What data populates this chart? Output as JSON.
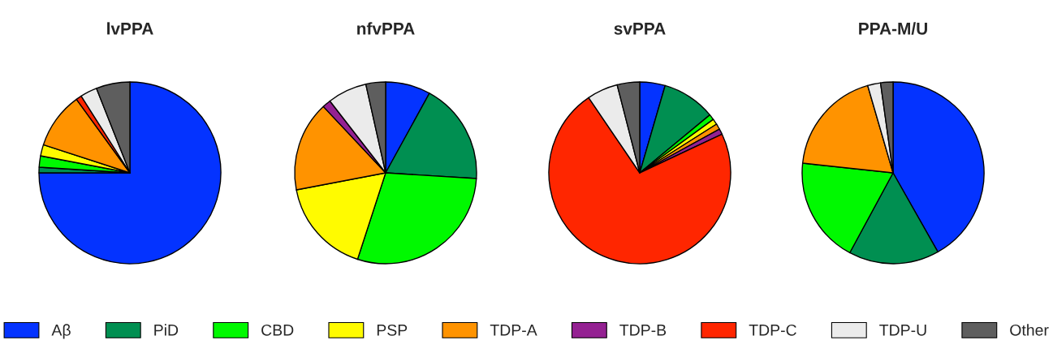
{
  "chart_data": [
    {
      "type": "pie",
      "title": "lvPPA",
      "categories": [
        "Aβ",
        "PiD",
        "CBD",
        "PSP",
        "TDP-A",
        "TDP-B",
        "TDP-C",
        "TDP-U",
        "Other"
      ],
      "values": [
        75,
        1,
        2,
        2,
        10,
        0,
        1,
        3,
        6
      ],
      "colors": [
        "#0433ff",
        "#008f51",
        "#00f900",
        "#fffb00",
        "#ff9300",
        "#942192",
        "#ff2600",
        "#ebebeb",
        "#5e5e5e"
      ],
      "legend": "bottom"
    },
    {
      "type": "pie",
      "title": "nfvPPA",
      "values": [
        8,
        18,
        29,
        17,
        16,
        1.5,
        0,
        7,
        3.5
      ],
      "colors": [
        "#0433ff",
        "#008f51",
        "#00f900",
        "#fffb00",
        "#ff9300",
        "#942192",
        "#ff2600",
        "#ebebeb",
        "#5e5e5e"
      ]
    },
    {
      "type": "pie",
      "title": "svPPA",
      "values": [
        4.5,
        9.5,
        1,
        1,
        1,
        1,
        72.5,
        5.5,
        4
      ],
      "colors": [
        "#0433ff",
        "#008f51",
        "#00f900",
        "#fffb00",
        "#ff9300",
        "#942192",
        "#ff2600",
        "#ebebeb",
        "#5e5e5e"
      ]
    },
    {
      "type": "pie",
      "title": "PPA-M/U",
      "values": [
        41.8,
        16.1,
        18.8,
        0,
        18.8,
        0,
        0,
        2.3,
        2.2
      ],
      "colors": [
        "#0433ff",
        "#008f51",
        "#00f900",
        "#fffb00",
        "#ff9300",
        "#942192",
        "#ff2600",
        "#ebebeb",
        "#5e5e5e"
      ]
    }
  ]
}
